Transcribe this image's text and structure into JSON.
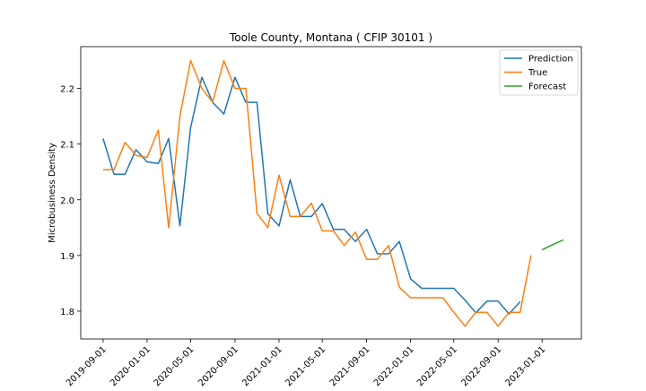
{
  "chart_data": {
    "type": "line",
    "title": "Toole County, Montana ( CFIP 30101 )",
    "xlabel": "",
    "ylabel": "Microbusiness Density",
    "xlim": [
      "2019-07-01",
      "2023-04-20"
    ],
    "ylim": [
      1.75,
      2.275
    ],
    "x_ticks": [
      "2019-09-01",
      "2020-01-01",
      "2020-05-01",
      "2020-09-01",
      "2021-01-01",
      "2021-05-01",
      "2021-09-01",
      "2022-01-01",
      "2022-05-01",
      "2022-09-01",
      "2023-01-01"
    ],
    "y_ticks": [
      1.8,
      1.9,
      2.0,
      2.1,
      2.2
    ],
    "legend_position": "top-right",
    "grid": false,
    "series": [
      {
        "name": "Prediction",
        "color": "#1f77b4",
        "x": [
          "2019-09-01",
          "2019-10-01",
          "2019-11-01",
          "2019-12-01",
          "2020-01-01",
          "2020-02-01",
          "2020-03-01",
          "2020-04-01",
          "2020-05-01",
          "2020-06-01",
          "2020-07-01",
          "2020-08-01",
          "2020-09-01",
          "2020-10-01",
          "2020-11-01",
          "2020-12-01",
          "2021-01-01",
          "2021-02-01",
          "2021-03-01",
          "2021-04-01",
          "2021-05-01",
          "2021-06-01",
          "2021-07-01",
          "2021-08-01",
          "2021-09-01",
          "2021-10-01",
          "2021-11-01",
          "2021-12-01",
          "2022-01-01",
          "2022-02-01",
          "2022-03-01",
          "2022-04-01",
          "2022-05-01",
          "2022-06-01",
          "2022-07-01",
          "2022-08-01",
          "2022-09-01",
          "2022-10-01",
          "2022-11-01"
        ],
        "values": [
          2.11,
          2.046,
          2.046,
          2.09,
          2.068,
          2.065,
          2.11,
          1.953,
          2.13,
          2.22,
          2.175,
          2.154,
          2.22,
          2.175,
          2.175,
          1.975,
          1.953,
          2.036,
          1.97,
          1.97,
          1.993,
          1.947,
          1.947,
          1.925,
          1.947,
          1.903,
          1.903,
          1.925,
          1.858,
          1.841,
          1.841,
          1.841,
          1.841,
          1.82,
          1.797,
          1.818,
          1.818,
          1.795,
          1.817
        ]
      },
      {
        "name": "True",
        "color": "#ff7f0e",
        "x": [
          "2019-09-01",
          "2019-10-01",
          "2019-11-01",
          "2019-12-01",
          "2020-01-01",
          "2020-02-01",
          "2020-03-01",
          "2020-04-01",
          "2020-05-01",
          "2020-06-01",
          "2020-07-01",
          "2020-08-01",
          "2020-09-01",
          "2020-10-01",
          "2020-11-01",
          "2020-12-01",
          "2021-01-01",
          "2021-02-01",
          "2021-03-01",
          "2021-04-01",
          "2021-05-01",
          "2021-06-01",
          "2021-07-01",
          "2021-08-01",
          "2021-09-01",
          "2021-10-01",
          "2021-11-01",
          "2021-12-01",
          "2022-01-01",
          "2022-02-01",
          "2022-03-01",
          "2022-04-01",
          "2022-05-01",
          "2022-06-01",
          "2022-07-01",
          "2022-08-01",
          "2022-09-01",
          "2022-10-01",
          "2022-11-01",
          "2022-12-01"
        ],
        "values": [
          2.054,
          2.054,
          2.103,
          2.08,
          2.076,
          2.125,
          1.95,
          2.15,
          2.25,
          2.2,
          2.175,
          2.25,
          2.2,
          2.2,
          1.976,
          1.95,
          2.044,
          1.97,
          1.97,
          1.994,
          1.944,
          1.944,
          1.918,
          1.942,
          1.893,
          1.893,
          1.918,
          1.843,
          1.824,
          1.824,
          1.824,
          1.824,
          1.798,
          1.773,
          1.798,
          1.798,
          1.773,
          1.798,
          1.798,
          1.9
        ]
      },
      {
        "name": "Forecast",
        "color": "#2ca02c",
        "x": [
          "2023-01-01",
          "2023-02-01",
          "2023-03-01"
        ],
        "values": [
          1.91,
          1.92,
          1.928
        ]
      }
    ]
  }
}
